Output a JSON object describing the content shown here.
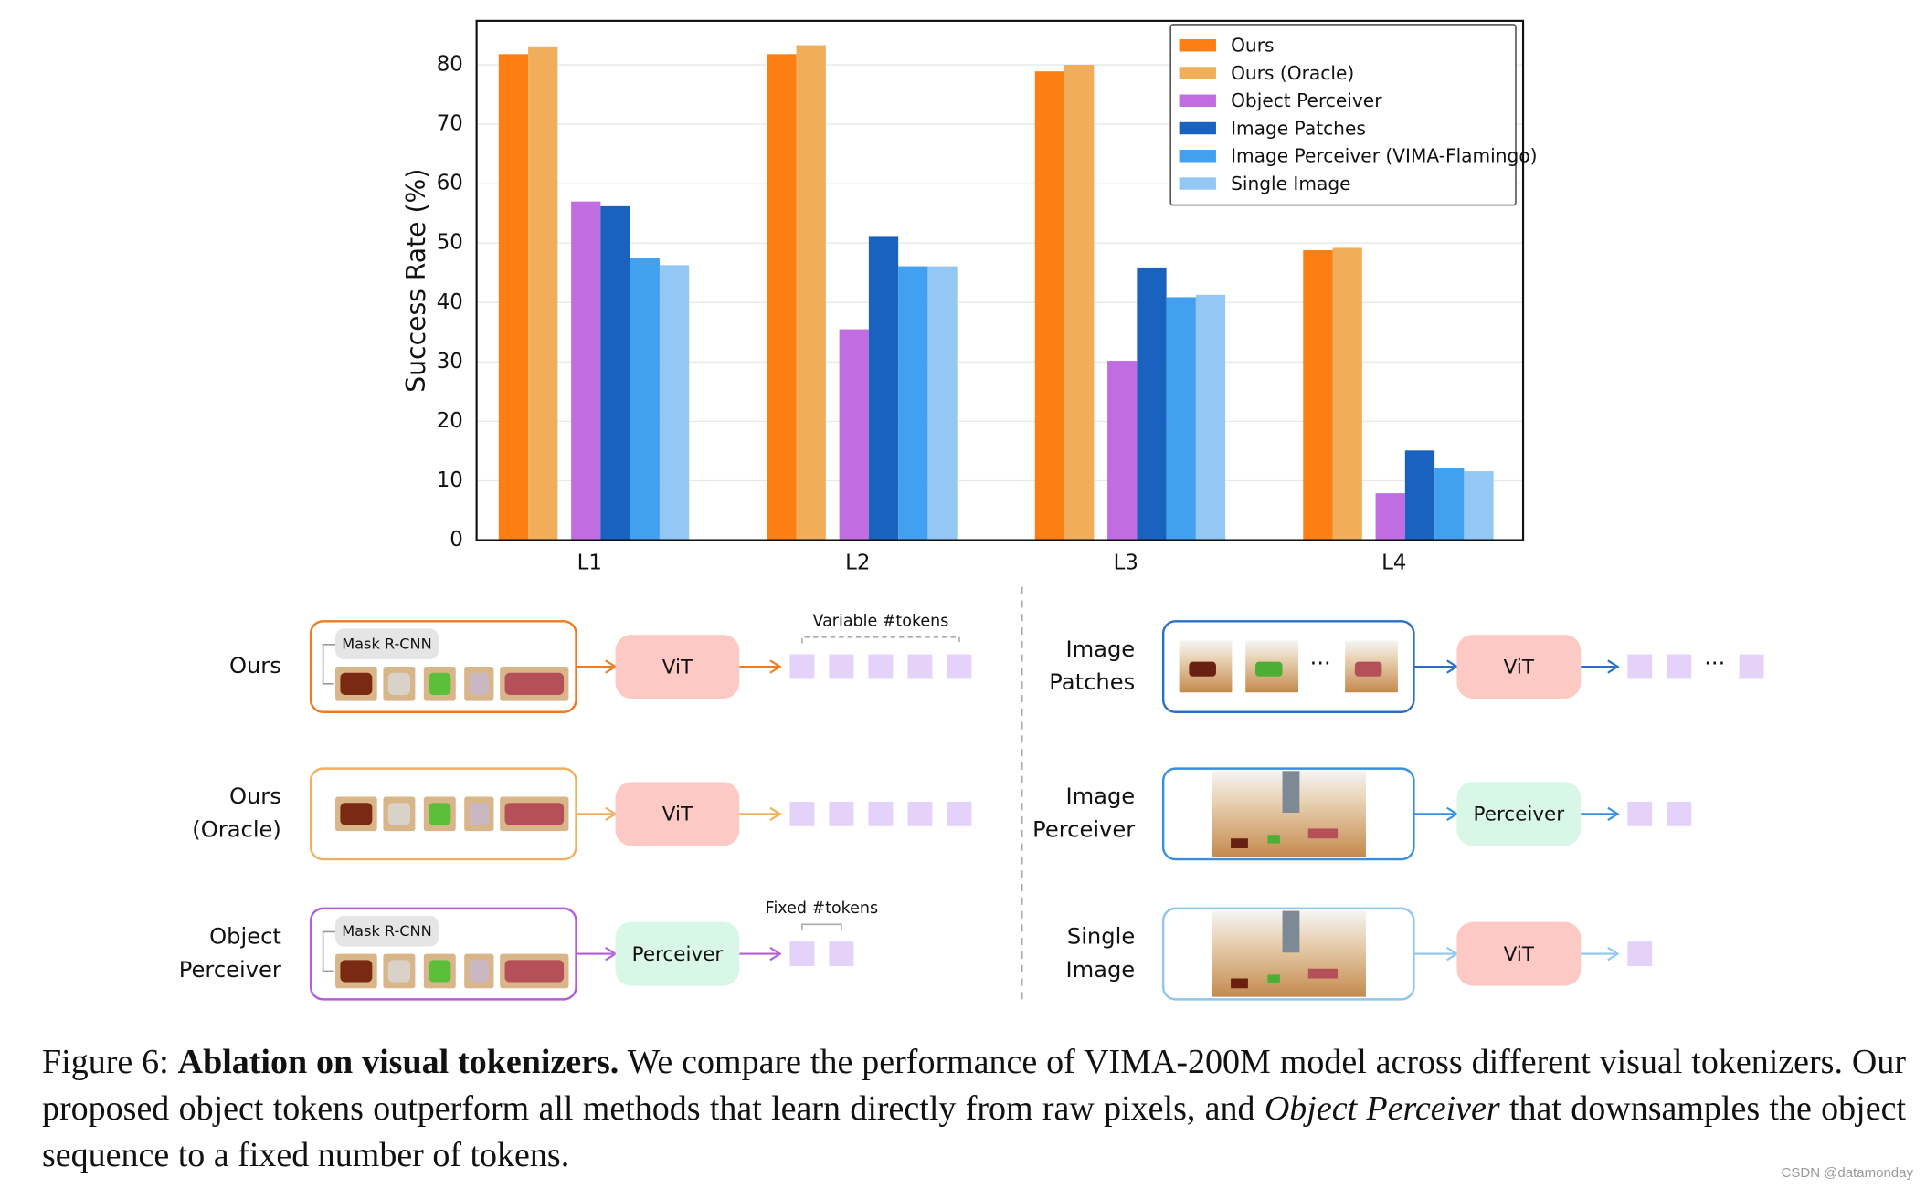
{
  "chart_data": {
    "type": "bar",
    "y_label": "Success Rate (%)",
    "categories": [
      "L1",
      "L2",
      "L3",
      "L4"
    ],
    "series": [
      {
        "name": "Ours",
        "color": "#fd7f14",
        "values": [
          81.8,
          81.8,
          78.9,
          48.8
        ]
      },
      {
        "name": "Ours (Oracle)",
        "color": "#f0ad5a",
        "values": [
          83.1,
          83.3,
          80.0,
          49.2
        ]
      },
      {
        "name": "Object Perceiver",
        "color": "#c06de2",
        "values": [
          57.0,
          35.5,
          30.2,
          7.9
        ]
      },
      {
        "name": "Image Patches",
        "color": "#1a62c0",
        "values": [
          56.2,
          51.2,
          45.9,
          15.1
        ]
      },
      {
        "name": "Image Perceiver (VIMA-Flamingo)",
        "color": "#42a0f0",
        "values": [
          47.5,
          46.1,
          40.9,
          12.2
        ]
      },
      {
        "name": "Single Image",
        "color": "#93c8f5",
        "values": [
          46.3,
          46.1,
          41.3,
          11.6
        ]
      }
    ],
    "ylim": [
      0,
      87.4
    ],
    "yticks": [
      0,
      10,
      20,
      30,
      40,
      50,
      60,
      70,
      80
    ],
    "grid": true,
    "legend": "upper right"
  },
  "diagram": {
    "left": [
      {
        "label": [
          "Ours"
        ],
        "detector": "Mask R-CNN",
        "encoder": "ViT",
        "annotation": "Variable #tokens"
      },
      {
        "label": [
          "Ours",
          "(Oracle)"
        ],
        "encoder": "ViT"
      },
      {
        "label": [
          "Object",
          "Perceiver"
        ],
        "detector": "Mask R-CNN",
        "encoder": "Perceiver",
        "annotation": "Fixed #tokens"
      }
    ],
    "right": [
      {
        "label": [
          "Image",
          "Patches"
        ],
        "encoder": "ViT",
        "ellipsis": "···"
      },
      {
        "label": [
          "Image",
          "Perceiver"
        ],
        "encoder": "Perceiver"
      },
      {
        "label": [
          "Single",
          "Image"
        ],
        "encoder": "ViT"
      }
    ]
  },
  "caption": {
    "label": "Figure 6:",
    "title": "Ablation on visual tokenizers.",
    "text": "We compare the performance of VIMA-200M model across different visual tokenizers. Our proposed object tokens outperform all methods that learn directly from raw pixels, and",
    "emphasis": "Object Perceiver",
    "text_end": "that downsamples the object sequence to a fixed number of tokens."
  },
  "watermark": "CSDN @datamonday"
}
